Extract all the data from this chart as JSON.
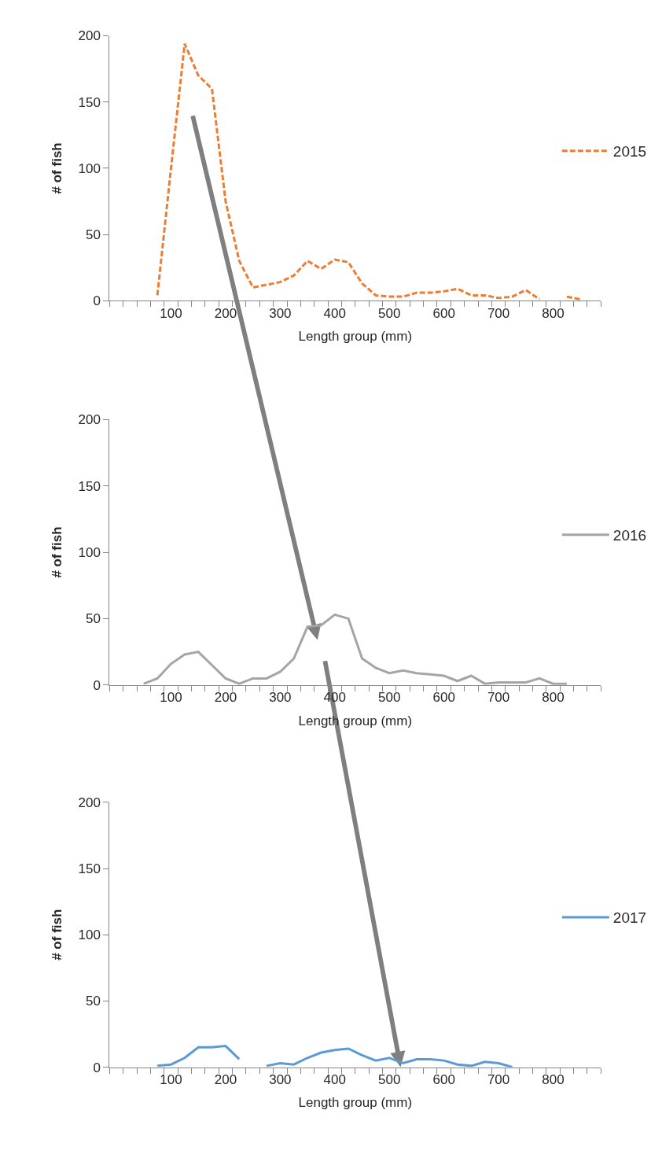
{
  "chart_data": [
    {
      "type": "line",
      "xlabel": "Length group (mm)",
      "ylabel": "# of fish",
      "xlim": [
        -12.5,
        887.5
      ],
      "xticks": [
        100,
        200,
        300,
        400,
        500,
        600,
        700,
        800
      ],
      "ylim": [
        0,
        200
      ],
      "yticks": [
        0,
        50,
        100,
        150,
        200
      ],
      "grid": false,
      "legend": "right",
      "marker": "none",
      "series": [
        {
          "name": "2015",
          "color": "#ed7d31",
          "line_style": "dashed",
          "x": [
            75,
            100,
            125,
            150,
            175,
            200,
            225,
            250,
            275,
            300,
            325,
            350,
            375,
            400,
            425,
            450,
            475,
            500,
            525,
            550,
            575,
            600,
            625,
            650,
            675,
            700,
            725,
            750,
            775,
            800,
            825,
            850
          ],
          "values": [
            4,
            100,
            194,
            170,
            160,
            75,
            30,
            10,
            12,
            14,
            19,
            30,
            24,
            31,
            29,
            13,
            4,
            3,
            3,
            6,
            6,
            7,
            9,
            4,
            4,
            2,
            3,
            8,
            1,
            null,
            3,
            1
          ]
        }
      ]
    },
    {
      "type": "line",
      "xlabel": "Length group (mm)",
      "ylabel": "# of fish",
      "xlim": [
        -12.5,
        887.5
      ],
      "xticks": [
        100,
        200,
        300,
        400,
        500,
        600,
        700,
        800
      ],
      "ylim": [
        0,
        200
      ],
      "yticks": [
        0,
        50,
        100,
        150,
        200
      ],
      "grid": false,
      "legend": "right",
      "marker": "none",
      "series": [
        {
          "name": "2016",
          "color": "#a5a5a5",
          "line_style": "solid",
          "x": [
            50,
            75,
            100,
            125,
            150,
            175,
            200,
            225,
            250,
            275,
            300,
            325,
            350,
            375,
            400,
            425,
            450,
            475,
            500,
            525,
            550,
            575,
            600,
            625,
            650,
            675,
            700,
            725,
            750,
            775,
            800,
            825
          ],
          "values": [
            1,
            5,
            16,
            23,
            25,
            15,
            5,
            1,
            5,
            5,
            10,
            20,
            44,
            45,
            53,
            50,
            20,
            13,
            9,
            11,
            9,
            8,
            7,
            3,
            7,
            1,
            2,
            2,
            2,
            5,
            1,
            1
          ]
        }
      ]
    },
    {
      "type": "line",
      "xlabel": "Length group (mm)",
      "ylabel": "# of fish",
      "xlim": [
        -12.5,
        887.5
      ],
      "xticks": [
        100,
        200,
        300,
        400,
        500,
        600,
        700,
        800
      ],
      "ylim": [
        0,
        200
      ],
      "yticks": [
        0,
        50,
        100,
        150,
        200
      ],
      "grid": false,
      "legend": "right",
      "marker": "none",
      "series": [
        {
          "name": "2017",
          "color": "#5b9bd5",
          "line_style": "solid",
          "x": [
            75,
            100,
            125,
            150,
            175,
            200,
            225,
            250,
            275,
            300,
            325,
            350,
            375,
            400,
            425,
            450,
            475,
            500,
            525,
            550,
            575,
            600,
            625,
            650,
            675,
            700,
            725
          ],
          "values": [
            1,
            2,
            7,
            15,
            15,
            16,
            6,
            null,
            1,
            3,
            2,
            7,
            11,
            13,
            14,
            9,
            5,
            7,
            3,
            6,
            6,
            5,
            2,
            1,
            4,
            3,
            0
          ]
        }
      ]
    }
  ]
}
